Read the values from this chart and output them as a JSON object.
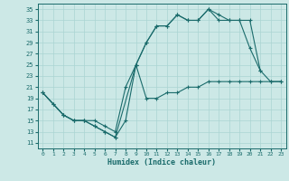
{
  "xlabel": "Humidex (Indice chaleur)",
  "background_color": "#cce8e6",
  "grid_color": "#aad4d2",
  "line_color": "#1a6b6b",
  "xlim": [
    -0.5,
    23.5
  ],
  "ylim": [
    10,
    36
  ],
  "yticks": [
    11,
    13,
    15,
    17,
    19,
    21,
    23,
    25,
    27,
    29,
    31,
    33,
    35
  ],
  "xticks": [
    0,
    1,
    2,
    3,
    4,
    5,
    6,
    7,
    8,
    9,
    10,
    11,
    12,
    13,
    14,
    15,
    16,
    17,
    18,
    19,
    20,
    21,
    22,
    23
  ],
  "series": [
    {
      "x": [
        0,
        1,
        2,
        3,
        4,
        5,
        6,
        7,
        8,
        9,
        10,
        11,
        12,
        13,
        14,
        15,
        16,
        17,
        18,
        19,
        20,
        21
      ],
      "y": [
        20,
        18,
        16,
        15,
        15,
        14,
        13,
        12,
        15,
        25,
        29,
        32,
        32,
        34,
        33,
        33,
        35,
        34,
        33,
        33,
        28,
        24
      ]
    },
    {
      "x": [
        0,
        1,
        2,
        3,
        4,
        5,
        6,
        7,
        9,
        10,
        11,
        12,
        13,
        14,
        15,
        16,
        17,
        18,
        19,
        20,
        21,
        22,
        23
      ],
      "y": [
        20,
        18,
        16,
        15,
        15,
        14,
        13,
        12,
        25,
        29,
        32,
        32,
        34,
        33,
        33,
        35,
        33,
        33,
        33,
        33,
        24,
        22,
        22
      ]
    },
    {
      "x": [
        0,
        2,
        3,
        4,
        5,
        6,
        7,
        8,
        9,
        10,
        11,
        12,
        13,
        14,
        15,
        16,
        17,
        18,
        19,
        20,
        21,
        22,
        23
      ],
      "y": [
        20,
        16,
        15,
        15,
        15,
        14,
        13,
        21,
        25,
        19,
        19,
        20,
        20,
        21,
        21,
        22,
        22,
        22,
        22,
        22,
        22,
        22,
        22
      ]
    }
  ]
}
